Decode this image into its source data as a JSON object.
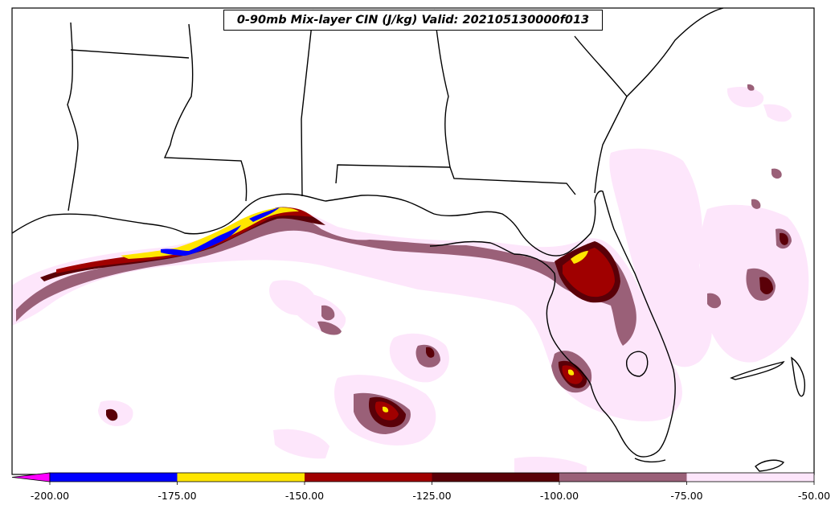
{
  "title": "0-90mb Mix-layer CIN (J/kg) Valid: 202105130000f013",
  "colors": {
    "land_boundary": "#000000",
    "background": "#ffffff"
  },
  "colorbar": {
    "ticks": [
      "-200.00",
      "-175.00",
      "-150.00",
      "-125.00",
      "-100.00",
      "-75.00",
      "-50.00"
    ],
    "bins": [
      {
        "from": -225,
        "to": -200,
        "color": "#ff00ff"
      },
      {
        "from": -200,
        "to": -175,
        "color": "#0000ff"
      },
      {
        "from": -175,
        "to": -150,
        "color": "#ffe600"
      },
      {
        "from": -150,
        "to": -125,
        "color": "#a00000"
      },
      {
        "from": -125,
        "to": -100,
        "color": "#5a0008"
      },
      {
        "from": -100,
        "to": -75,
        "color": "#9a6078"
      },
      {
        "from": -75,
        "to": -50,
        "color": "#fde6fb"
      }
    ]
  }
}
